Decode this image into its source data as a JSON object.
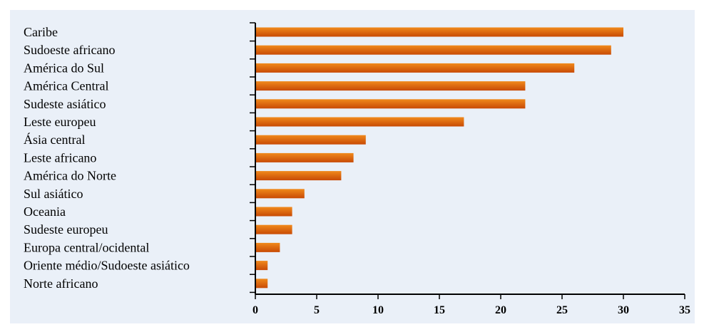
{
  "chart_data": {
    "type": "bar",
    "orientation": "horizontal",
    "title": "",
    "xlabel": "",
    "ylabel": "",
    "categories": [
      "Caribe",
      "Sudoeste africano",
      "América do Sul",
      "América Central",
      "Sudeste asiático",
      "Leste europeu",
      "Ásia central",
      "Leste africano",
      "América do Norte",
      "Sul asiático",
      "Oceania",
      "Sudeste europeu",
      "Europa central/ocidental",
      "Oriente médio/Sudoeste asiático",
      "Norte africano"
    ],
    "values": [
      30,
      29,
      26,
      22,
      22,
      17,
      9,
      8,
      7,
      4,
      3,
      3,
      2,
      1,
      1
    ],
    "xlim": [
      0,
      35
    ],
    "xticks": [
      0,
      5,
      10,
      15,
      20,
      25,
      30,
      35
    ],
    "grid": false,
    "legend": "none",
    "colors": {
      "bar_top": "#f08a1c",
      "bar_bottom": "#c84a05",
      "background": "#eaf0f8",
      "axis": "#000000"
    }
  }
}
